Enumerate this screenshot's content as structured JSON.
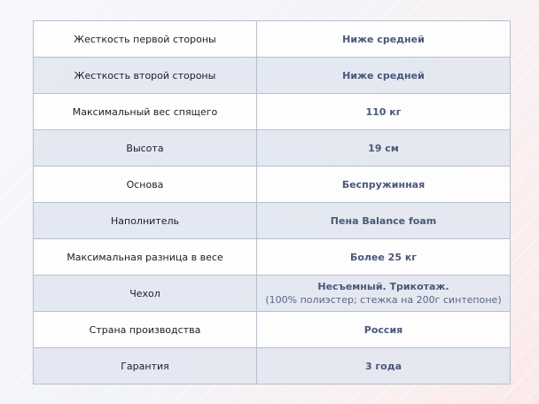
{
  "specs": [
    {
      "label": "Жесткость первой стороны",
      "value": "Ниже средней"
    },
    {
      "label": "Жесткость второй стороны",
      "value": "Ниже средней"
    },
    {
      "label": "Максимальный вес спящего",
      "value": "110 кг"
    },
    {
      "label": "Высота",
      "value": "19 см"
    },
    {
      "label": "Основа",
      "value": "Беспружинная"
    },
    {
      "label": "Наполнитель",
      "value": "Пена Balance foam"
    },
    {
      "label": "Максимальная разница в весе",
      "value": "Более 25 кг"
    },
    {
      "label": "Чехол",
      "value": "Несъемный. Трикотаж.",
      "value_note": "(100% полиэстер; стежка на 200г синтепоне)"
    },
    {
      "label": "Страна производства",
      "value": "Россия"
    },
    {
      "label": "Гарантия",
      "value": "3 года"
    }
  ],
  "colors": {
    "value_text": "#4a5878",
    "alt_row": "#e2e7f1",
    "border": "#b7bfcc"
  }
}
